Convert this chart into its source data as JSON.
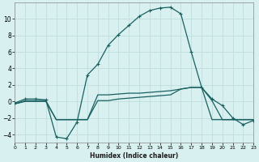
{
  "xlabel": "Humidex (Indice chaleur)",
  "bg_color": "#d8f0f0",
  "grid_color": "#c0dede",
  "line_color": "#1a6060",
  "line1_x": [
    0,
    1,
    2,
    3,
    4,
    5,
    6,
    7,
    8,
    9,
    10,
    11,
    12,
    13,
    14,
    15,
    16,
    17,
    18,
    19,
    20,
    21,
    22,
    23
  ],
  "line1_y": [
    -0.2,
    0.3,
    0.3,
    0.2,
    -4.3,
    -4.5,
    -2.5,
    3.2,
    4.5,
    6.8,
    8.1,
    9.2,
    10.3,
    11.0,
    11.3,
    11.4,
    10.6,
    6.0,
    1.7,
    0.3,
    -0.5,
    -2.0,
    -2.8,
    -2.3
  ],
  "line2_x": [
    0,
    1,
    2,
    3,
    4,
    5,
    6,
    7,
    8,
    9,
    10,
    11,
    12,
    13,
    14,
    15,
    16,
    17,
    18,
    19,
    20,
    21,
    22,
    23
  ],
  "line2_y": [
    -0.3,
    0.1,
    0.1,
    0.1,
    -2.2,
    -2.2,
    -2.2,
    -2.2,
    0.8,
    0.8,
    0.9,
    1.0,
    1.0,
    1.1,
    1.2,
    1.3,
    1.5,
    1.7,
    1.7,
    -2.2,
    -2.2,
    -2.2,
    -2.2,
    -2.2
  ],
  "line3_x": [
    0,
    1,
    2,
    3,
    4,
    5,
    6,
    7,
    8,
    9,
    10,
    11,
    12,
    13,
    14,
    15,
    16,
    17,
    18,
    19,
    20,
    21,
    22,
    23
  ],
  "line3_y": [
    -0.3,
    0.0,
    0.0,
    0.0,
    -2.2,
    -2.2,
    -2.2,
    -2.2,
    0.1,
    0.1,
    0.3,
    0.4,
    0.5,
    0.6,
    0.7,
    0.8,
    1.5,
    1.7,
    1.7,
    0.1,
    -2.2,
    -2.2,
    -2.2,
    -2.2
  ],
  "ylim": [
    -5,
    12
  ],
  "xlim": [
    0,
    23
  ],
  "yticks": [
    -4,
    -2,
    0,
    2,
    4,
    6,
    8,
    10
  ],
  "xticks": [
    0,
    1,
    2,
    3,
    4,
    5,
    6,
    7,
    8,
    9,
    10,
    11,
    12,
    13,
    14,
    15,
    16,
    17,
    18,
    19,
    20,
    21,
    22,
    23
  ]
}
